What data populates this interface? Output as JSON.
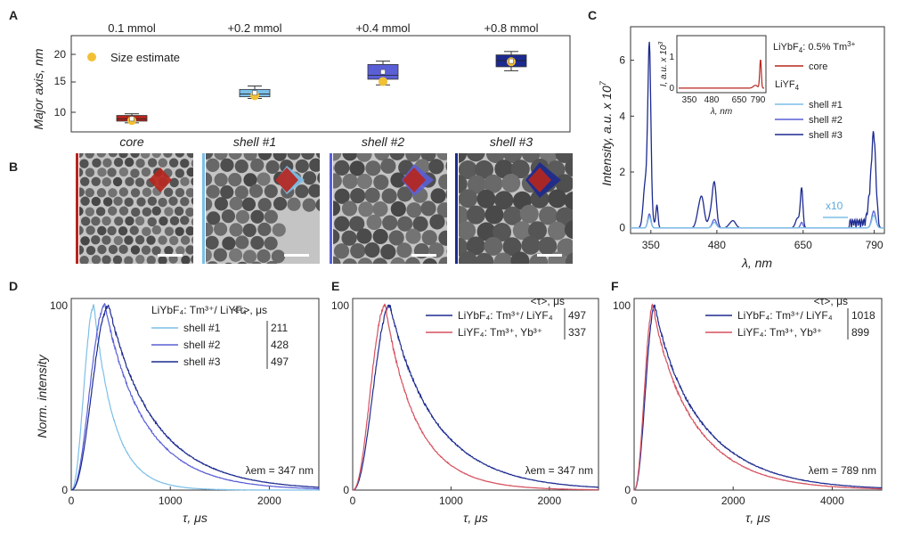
{
  "colors": {
    "core": "#b5261e",
    "shell1": "#7cbfe8",
    "shell2": "#5a5fd6",
    "shell3": "#1c2a8f",
    "yb": "#d5505e",
    "estimate": "#f2c035",
    "tem_bg": "#bfbfbf"
  },
  "panel_a": {
    "letter": "A",
    "ylabel": "Major axis, nm",
    "amounts": [
      "0.1 mmol",
      "+0.2 mmol",
      "+0.4 mmol",
      "+0.8 mmol"
    ],
    "categories": [
      "core",
      "shell #1",
      "shell #2",
      "shell #3"
    ],
    "legend": "Size estimate",
    "yticks": [
      "10",
      "15",
      "20"
    ]
  },
  "panel_b": {
    "letter": "B"
  },
  "panel_c": {
    "letter": "C",
    "ylabel": "Intensity, a.u. x 10",
    "ylabel_exp": "7",
    "xlabel": "λ, nm",
    "xticks": [
      "350",
      "480",
      "650",
      "790"
    ],
    "yticks": [
      "0",
      "2",
      "4",
      "6"
    ],
    "x10": "x10",
    "legend_head1": "LiYbF",
    "legend_head1_sub": "4",
    "legend_head1_rest": ": 0.5% Tm",
    "legend_head1_sup": "3+",
    "legend_core": "core",
    "legend_head2": "LiYF",
    "legend_head2_sub": "4",
    "legend_items": [
      "shell #1",
      "shell #2",
      "shell #3"
    ],
    "inset_ylabel": "I, a.u. x 10",
    "inset_ylabel_exp": "3",
    "inset_yticks": [
      "0",
      "1"
    ],
    "inset_xticks": [
      "350",
      "480",
      "650",
      "790"
    ],
    "inset_xlabel": "λ, nm"
  },
  "panel_d": {
    "letter": "D",
    "ylabel": "Norm. intensity",
    "xlabel": "τ, μs",
    "xticks": [
      "0",
      "1000",
      "2000"
    ],
    "yticks": [
      "0",
      "100"
    ],
    "legend_title": "LiYbF₄: Tm³⁺/ LiYF₄",
    "tau_head": "<τ>, μs",
    "items": [
      {
        "name": "shell #1",
        "tau": "211"
      },
      {
        "name": "shell #2",
        "tau": "428"
      },
      {
        "name": "shell #3",
        "tau": "497"
      }
    ],
    "lambda": "λem = 347 nm"
  },
  "panel_e": {
    "letter": "E",
    "xlabel": "τ, μs",
    "xticks": [
      "0",
      "1000",
      "2000"
    ],
    "tau_head": "<τ>, μs",
    "items": [
      {
        "name": "LiYbF₄: Tm³⁺/ LiYF₄",
        "tau": "497"
      },
      {
        "name": "LiYF₄: Tm³⁺, Yb³⁺",
        "tau": "337"
      }
    ],
    "lambda": "λem = 347 nm"
  },
  "panel_f": {
    "letter": "F",
    "xlabel": "τ, μs",
    "xticks": [
      "0",
      "2000",
      "4000"
    ],
    "tau_head": "<τ>, μs",
    "items": [
      {
        "name": "LiYbF₄: Tm³⁺/ LiYF₄",
        "tau": "1018"
      },
      {
        "name": "LiYF₄: Tm³⁺, Yb³⁺",
        "tau": "899"
      }
    ],
    "lambda": "λem = 789 nm"
  },
  "chart_data": [
    {
      "type": "box",
      "panel": "A",
      "categories": [
        "core",
        "shell #1",
        "shell #2",
        "shell #3"
      ],
      "ylabel": "Major axis, nm",
      "ylim": [
        7,
        24
      ],
      "series": [
        {
          "name": "core",
          "whisker_low": 8.6,
          "q1": 8.9,
          "median": 9.3,
          "q3": 9.9,
          "whisker_high": 10.2,
          "mean": 9.3,
          "estimate": 9.0
        },
        {
          "name": "shell #1",
          "whisker_low": 12.9,
          "q1": 13.2,
          "median": 13.7,
          "q3": 14.5,
          "whisker_high": 15.1,
          "mean": 13.9,
          "estimate": 13.4
        },
        {
          "name": "shell #2",
          "whisker_low": 15.3,
          "q1": 16.3,
          "median": 17.0,
          "q3": 18.9,
          "whisker_high": 19.5,
          "mean": 17.6,
          "estimate": 15.9
        },
        {
          "name": "shell #3",
          "whisker_low": 17.8,
          "q1": 18.5,
          "median": 19.6,
          "q3": 20.6,
          "whisker_high": 21.2,
          "mean": 19.5,
          "estimate": 19.4
        }
      ],
      "legend": [
        "Size estimate"
      ]
    },
    {
      "type": "line",
      "panel": "C",
      "xlabel": "λ, nm",
      "ylabel": "Intensity, a.u. x 10^7",
      "xlim": [
        310,
        810
      ],
      "ylim": [
        -0.2,
        7.2
      ],
      "peaks_nm": [
        347,
        362,
        450,
        475,
        512,
        647,
        700,
        760,
        789
      ],
      "series": [
        {
          "name": "shell #3",
          "peaks": [
            [
              347,
              6.4
            ],
            [
              362,
              0.8
            ],
            [
              450,
              1.1
            ],
            [
              475,
              1.6
            ],
            [
              512,
              0.25
            ],
            [
              647,
              1.4
            ],
            [
              789,
              3.1
            ]
          ]
        },
        {
          "name": "shell #2",
          "peaks": [
            [
              347,
              0.5
            ],
            [
              475,
              0.3
            ],
            [
              647,
              0.2
            ],
            [
              789,
              0.6
            ]
          ]
        },
        {
          "name": "shell #1",
          "peaks": [
            [
              347,
              0.4
            ],
            [
              475,
              0.2
            ],
            [
              789,
              0.45
            ]
          ]
        },
        {
          "name": "core",
          "peaks": [
            [
              789,
              0.0003
            ]
          ]
        }
      ],
      "annotations": [
        "x10"
      ]
    },
    {
      "type": "line",
      "panel": "D",
      "xlabel": "τ, μs",
      "ylabel": "Norm. intensity",
      "xlim": [
        0,
        2500
      ],
      "ylim": [
        0,
        100
      ],
      "series": [
        {
          "name": "shell #1",
          "tau": 211,
          "peak_x": 230
        },
        {
          "name": "shell #2",
          "tau": 428,
          "peak_x": 340
        },
        {
          "name": "shell #3",
          "tau": 497,
          "peak_x": 380
        }
      ]
    },
    {
      "type": "line",
      "panel": "E",
      "xlabel": "τ, μs",
      "xlim": [
        0,
        2500
      ],
      "ylim": [
        0,
        100
      ],
      "series": [
        {
          "name": "LiYbF₄: Tm³⁺/ LiYF₄",
          "tau": 497,
          "peak_x": 380
        },
        {
          "name": "LiYF₄: Tm³⁺, Yb³⁺",
          "tau": 337,
          "peak_x": 330
        }
      ]
    },
    {
      "type": "line",
      "panel": "F",
      "xlabel": "τ, μs",
      "xlim": [
        0,
        5000
      ],
      "ylim": [
        0,
        100
      ],
      "series": [
        {
          "name": "LiYbF₄: Tm³⁺/ LiYF₄",
          "tau": 1018,
          "peak_x": 420
        },
        {
          "name": "LiYF₄: Tm³⁺, Yb³⁺",
          "tau": 899,
          "peak_x": 380
        }
      ]
    }
  ]
}
